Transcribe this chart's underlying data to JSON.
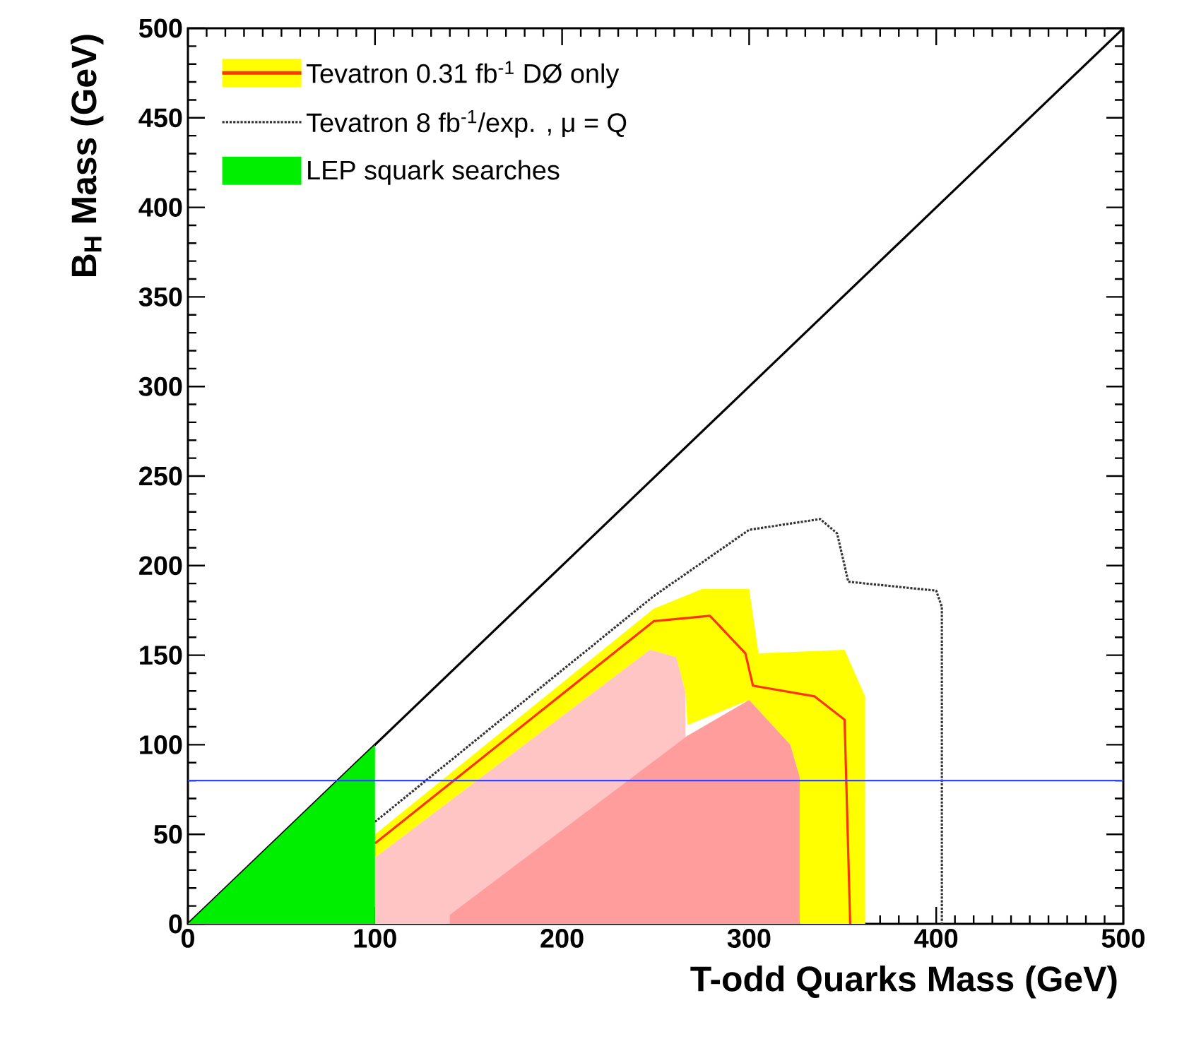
{
  "chart_data": {
    "type": "area",
    "xlabel": "T-odd Quarks  Mass (GeV)",
    "ylabel": "B$_{H}$ Mass (GeV)",
    "xlim": [
      0,
      500
    ],
    "ylim": [
      0,
      500
    ],
    "xticks": [
      0,
      100,
      200,
      300,
      400,
      500
    ],
    "yticks": [
      0,
      50,
      100,
      150,
      200,
      250,
      300,
      350,
      400,
      450,
      500
    ],
    "legend": "top left",
    "grid": false,
    "ref_lines": [
      {
        "axis": "y",
        "value": 80,
        "color": "#3344ff"
      }
    ],
    "series": [
      {
        "type": "line",
        "color": "#000000",
        "x": [
          0,
          500
        ],
        "values": [
          0,
          500
        ]
      },
      {
        "name": "Tevatron 0.31 fb$^{-1}$ DØ only",
        "color": "#ffff00",
        "x": [
          100,
          249,
          275,
          300,
          305,
          351,
          362,
          362,
          327,
          327,
          322,
          300,
          267,
          266,
          261,
          247,
          100
        ],
        "values": [
          50,
          176,
          187,
          187,
          151,
          153,
          127,
          0,
          0,
          82,
          100,
          125,
          111,
          129,
          149,
          153,
          37
        ]
      },
      {
        "type": "line",
        "color": "#ff3300",
        "x": [
          100,
          249,
          279,
          298,
          302,
          335,
          351,
          354
        ],
        "values": [
          45,
          169,
          172,
          151,
          133,
          127,
          114,
          0
        ]
      },
      {
        "color": "#ffc4c4",
        "x": [
          100,
          247,
          261,
          266,
          266,
          100
        ],
        "values": [
          37,
          153,
          149,
          129,
          0,
          0
        ]
      },
      {
        "color": "#ff9c9c",
        "x": [
          140,
          267,
          300,
          322,
          327,
          327,
          140
        ],
        "values": [
          5,
          105,
          125,
          100,
          82,
          0,
          0
        ]
      },
      {
        "name": "Tevatron 8 fb$^{-1}$/exp. , μ = Q",
        "type": "line",
        "line_style": "dotted",
        "color": "#333333",
        "x": [
          100,
          249,
          300,
          338,
          347,
          353,
          400,
          403,
          403
        ],
        "values": [
          57,
          183,
          220,
          226,
          218,
          191,
          186,
          177,
          0
        ]
      },
      {
        "name": "LEP squark searches",
        "color": "#00ee00",
        "x": [
          0,
          100,
          100
        ],
        "values": [
          0,
          100,
          0
        ]
      }
    ]
  }
}
